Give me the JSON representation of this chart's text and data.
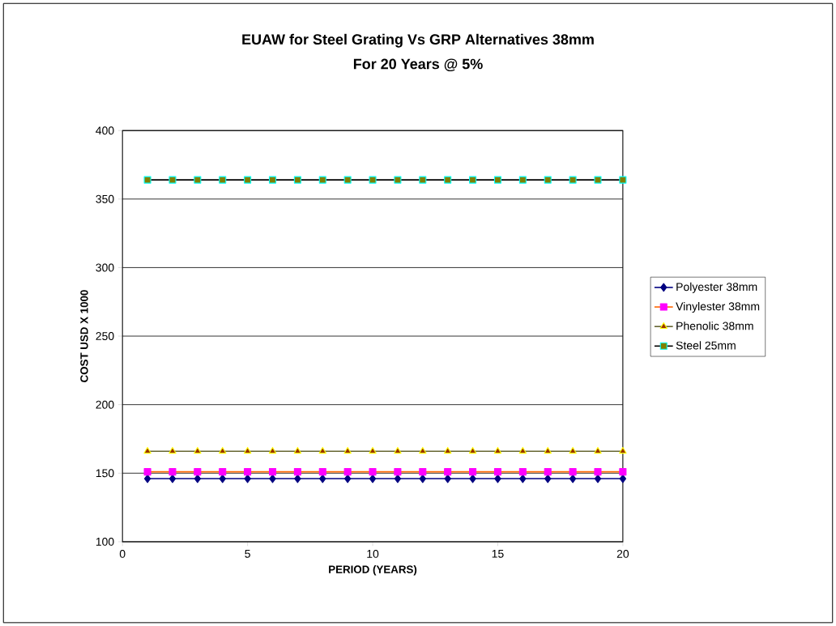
{
  "chart_data": {
    "type": "line",
    "title": "EUAW for Steel Grating Vs GRP Alternatives 38mm",
    "subtitle": "For 20 Years @ 5%",
    "xlabel": "PERIOD (YEARS)",
    "ylabel": "COST USD X 1000",
    "x": [
      1,
      2,
      3,
      4,
      5,
      6,
      7,
      8,
      9,
      10,
      11,
      12,
      13,
      14,
      15,
      16,
      17,
      18,
      19,
      20
    ],
    "series": [
      {
        "name": "Polyester 38mm",
        "color": "#000080",
        "marker": "diamond",
        "values": [
          146,
          146,
          146,
          146,
          146,
          146,
          146,
          146,
          146,
          146,
          146,
          146,
          146,
          146,
          146,
          146,
          146,
          146,
          146,
          146
        ]
      },
      {
        "name": "Vinylester 38mm",
        "color": "#ff6600",
        "marker": "square",
        "values": [
          151,
          151,
          151,
          151,
          151,
          151,
          151,
          151,
          151,
          151,
          151,
          151,
          151,
          151,
          151,
          151,
          151,
          151,
          151,
          151
        ]
      },
      {
        "name": "Phenolic 38mm",
        "color": "#666633",
        "marker": "triangle",
        "values": [
          166,
          166,
          166,
          166,
          166,
          166,
          166,
          166,
          166,
          166,
          166,
          166,
          166,
          166,
          166,
          166,
          166,
          166,
          166,
          166
        ]
      },
      {
        "name": "Steel 25mm",
        "color": "#000000",
        "marker": "square",
        "values": [
          364,
          364,
          364,
          364,
          364,
          364,
          364,
          364,
          364,
          364,
          364,
          364,
          364,
          364,
          364,
          364,
          364,
          364,
          364,
          364
        ]
      }
    ],
    "xlim": [
      0,
      20
    ],
    "xticks": [
      0,
      5,
      10,
      15,
      20
    ],
    "ylim": [
      100,
      400
    ],
    "yticks": [
      100,
      150,
      200,
      250,
      300,
      350,
      400
    ],
    "grid": "y",
    "legend": "right"
  }
}
